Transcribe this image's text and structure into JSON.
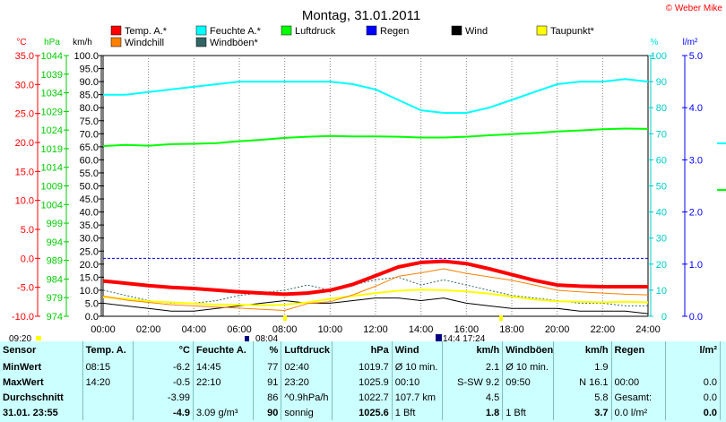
{
  "title": "Montag, 31.01.2011",
  "copyright": "© Weber Mike",
  "legend": [
    {
      "label": "Temp. A.*",
      "color": "#ff0000"
    },
    {
      "label": "Feuchte A.*",
      "color": "#00ffff"
    },
    {
      "label": "Luftdruck",
      "color": "#00ff00"
    },
    {
      "label": "Regen",
      "color": "#0000ff"
    },
    {
      "label": "Wind",
      "color": "#000000"
    },
    {
      "label": "Taupunkt*",
      "color": "#ffff00"
    },
    {
      "label": "Windchill",
      "color": "#ff8000"
    },
    {
      "label": "Windböen*",
      "color": "#336666"
    }
  ],
  "units": {
    "temp": "°C",
    "pressure": "hPa",
    "wind": "km/h",
    "humidity": "%",
    "rain": "l/m²"
  },
  "colors": {
    "temp_axis": "#ff0000",
    "pressure_axis": "#00cc00",
    "humidity_axis": "#00e0e0",
    "rain_axis": "#0000ff",
    "dewpoint": "#ffff00",
    "panel_bg": "#ccffff"
  },
  "events": {
    "sunrise_label": "08:04",
    "sunset_label": "14:4 17:24",
    "left_marker": "09:20"
  },
  "chart_data": {
    "type": "line",
    "title": "Montag, 31.01.2011",
    "xlim": [
      0,
      24
    ],
    "x_ticks": [
      "00:00",
      "02:00",
      "04:00",
      "06:00",
      "08:00",
      "10:00",
      "12:00",
      "14:00",
      "16:00",
      "18:00",
      "20:00",
      "22:00",
      "24:00"
    ],
    "axes": {
      "temp": {
        "unit": "°C",
        "ylim": [
          -10,
          35
        ],
        "ticks": [
          "35.0",
          "30.0",
          "25.0",
          "20.0",
          "15.0",
          "10.0",
          "5.0",
          "0.0",
          "-5.0",
          "-10.0"
        ]
      },
      "pressure": {
        "unit": "hPa",
        "ylim": [
          974,
          1044
        ],
        "ticks": [
          "1044",
          "1039",
          "1034",
          "1029",
          "1024",
          "1019",
          "1014",
          "1009",
          "1004",
          "999",
          "994",
          "989",
          "984",
          "979",
          "974"
        ]
      },
      "wind": {
        "unit": "km/h",
        "ylim": [
          0,
          100
        ],
        "ticks": [
          "100.0",
          "95.0",
          "90.0",
          "85.0",
          "80.0",
          "75.0",
          "70.0",
          "65.0",
          "60.0",
          "55.0",
          "50.0",
          "45.0",
          "40.0",
          "35.0",
          "30.0",
          "25.0",
          "20.0",
          "15.0",
          "10.0",
          "5.0",
          "0.0"
        ]
      },
      "humidity": {
        "unit": "%",
        "ylim": [
          0,
          100
        ],
        "ticks": [
          "100",
          "90",
          "80",
          "70",
          "60",
          "50",
          "40",
          "30",
          "20",
          "10",
          "0"
        ]
      },
      "rain": {
        "unit": "l/m²",
        "ylim": [
          0,
          5
        ],
        "ticks": [
          "5.0",
          "4.0",
          "3.0",
          "2.0",
          "1.0",
          "0.0"
        ]
      }
    },
    "x": [
      0,
      1,
      2,
      3,
      4,
      5,
      6,
      7,
      8,
      9,
      10,
      11,
      12,
      13,
      14,
      15,
      16,
      17,
      18,
      19,
      20,
      21,
      22,
      23,
      24
    ],
    "series": [
      {
        "name": "Temp. A.*",
        "axis": "temp",
        "color": "#ff0000",
        "width": 4,
        "values": [
          -3.9,
          -4.3,
          -4.7,
          -5.0,
          -5.2,
          -5.5,
          -5.8,
          -6.0,
          -6.2,
          -6.0,
          -5.5,
          -4.5,
          -3.0,
          -1.5,
          -0.7,
          -0.5,
          -0.9,
          -1.8,
          -2.8,
          -3.8,
          -4.6,
          -4.8,
          -4.9,
          -4.9,
          -4.9
        ]
      },
      {
        "name": "Feuchte A.*",
        "axis": "humidity",
        "color": "#00ffff",
        "width": 2,
        "values": [
          85,
          85,
          86,
          87,
          88,
          89,
          90,
          90,
          90,
          90,
          90,
          89,
          87,
          83,
          79,
          78,
          78,
          80,
          83,
          86,
          89,
          90,
          90,
          91,
          90
        ]
      },
      {
        "name": "Luftdruck",
        "axis": "pressure",
        "color": "#00ff00",
        "width": 2,
        "values": [
          1019.7,
          1020.0,
          1019.8,
          1020.2,
          1020.3,
          1020.5,
          1021.0,
          1021.4,
          1021.9,
          1022.2,
          1022.4,
          1022.3,
          1022.3,
          1022.2,
          1022.0,
          1022.0,
          1022.2,
          1022.6,
          1022.9,
          1023.2,
          1023.6,
          1023.9,
          1024.2,
          1024.4,
          1024.3
        ]
      },
      {
        "name": "Wind",
        "axis": "wind",
        "color": "#000000",
        "width": 1,
        "values": [
          5,
          4,
          3,
          2,
          2,
          3,
          4,
          5,
          6,
          5,
          5,
          6,
          7,
          7,
          6,
          7,
          5,
          4,
          3,
          3,
          3,
          2,
          2,
          2,
          1
        ]
      },
      {
        "name": "Taupunkt*",
        "axis": "temp",
        "color": "#ffff00",
        "width": 2,
        "values": [
          -6.7,
          -7.0,
          -7.4,
          -7.6,
          -7.8,
          -8.0,
          -8.0,
          -8.1,
          -8.0,
          -7.6,
          -7.0,
          -6.5,
          -6.0,
          -5.6,
          -5.4,
          -5.5,
          -5.7,
          -6.1,
          -6.6,
          -7.1,
          -7.4,
          -7.5,
          -7.6,
          -7.5,
          -7.6
        ]
      },
      {
        "name": "Windchill",
        "axis": "temp",
        "color": "#ff8000",
        "width": 1,
        "values": [
          -6.5,
          -7.2,
          -7.6,
          -8.0,
          -8.2,
          -8.4,
          -8.6,
          -8.8,
          -9.0,
          -7.8,
          -7.5,
          -6.3,
          -4.8,
          -3.1,
          -2.5,
          -1.8,
          -2.6,
          -3.2,
          -3.8,
          -4.6,
          -5.5,
          -5.8,
          -6.0,
          -6.2,
          -6.3
        ]
      },
      {
        "name": "Windböen*",
        "axis": "wind",
        "color": "#336666",
        "width": 1,
        "dashed": true,
        "values": [
          10,
          8,
          6,
          5,
          5,
          6,
          8,
          9,
          10,
          12,
          10,
          12,
          14,
          15,
          12,
          14,
          12,
          10,
          8,
          7,
          6,
          5,
          5,
          4,
          4
        ]
      }
    ],
    "reference_line": {
      "axis": "temp",
      "value": 0.0,
      "color": "#0000ff"
    }
  },
  "table": {
    "columns": [
      {
        "key": "label",
        "head": "Sensor",
        "head2": ""
      },
      {
        "key": "temp",
        "head": "Temp. A.",
        "head2": "°C"
      },
      {
        "key": "hum",
        "head": "Feuchte A.",
        "head2": "%"
      },
      {
        "key": "press",
        "head": "Luftdruck",
        "head2": "hPa"
      },
      {
        "key": "wind",
        "head": "Wind",
        "head2": "km/h"
      },
      {
        "key": "gust",
        "head": "Windböen",
        "head2": "km/h"
      },
      {
        "key": "rain",
        "head": "Regen",
        "head2": "l/m²"
      }
    ],
    "rows": [
      {
        "label": "MinWert",
        "cells": [
          "08:15",
          "-6.2",
          "14:45",
          "77",
          "02:40",
          "1019.7",
          "Ø 10 min.",
          "2.1",
          "Ø 10 min.",
          "1.9",
          "",
          ""
        ]
      },
      {
        "label": "MaxWert",
        "cells": [
          "14:20",
          "-0.5",
          "22:10",
          "91",
          "23:20",
          "1025.9",
          "00:10",
          "S-SW 9.2",
          "09:50",
          "N 16.1",
          "00:00",
          "0.0"
        ]
      },
      {
        "label": "Durchschnitt",
        "cells": [
          "",
          "-3.99",
          "",
          "86",
          "^0.9hPa/h",
          "1022.7",
          "107.7 km",
          "4.5",
          "",
          "5.8",
          "Gesamt:",
          "0.0"
        ]
      },
      {
        "label": "31.01. 23:55",
        "cells": [
          "",
          "-4.9",
          "3.09 g/m³",
          "90",
          "sonnig",
          "1025.6",
          "1 Bft",
          "1.8",
          "1 Bft",
          "3.7",
          "0.0 l/m²",
          "0.0"
        ]
      }
    ]
  }
}
